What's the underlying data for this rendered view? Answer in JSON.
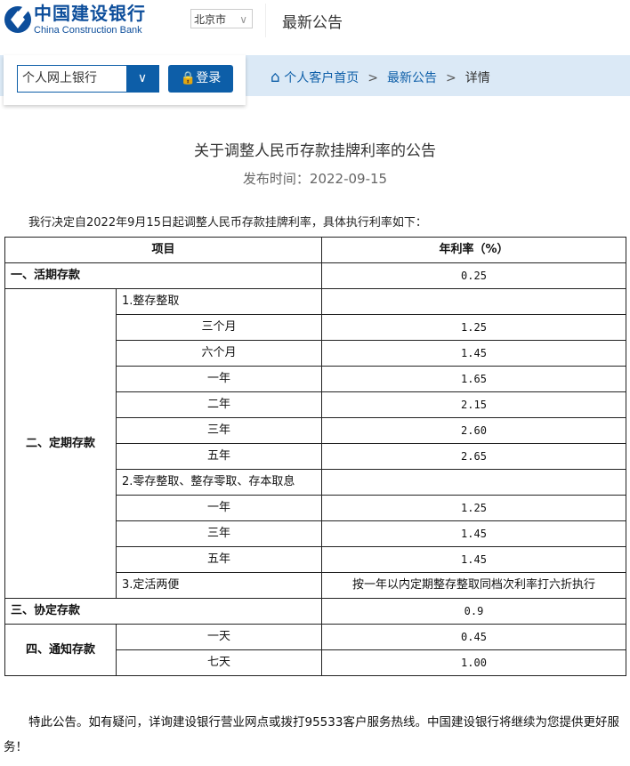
{
  "header": {
    "logo_cn": "中国建设银行",
    "logo_en": "China Construction Bank",
    "city": "北京市",
    "page_title": "最新公告"
  },
  "login_panel": {
    "select_value": "个人网上银行",
    "login_label": "登录"
  },
  "breadcrumb": {
    "home": "个人客户首页",
    "sep": ">",
    "news": "最新公告",
    "current": "详情"
  },
  "article": {
    "title": "关于调整人民币存款挂牌利率的公告",
    "date": "发布时间：2022-09-15",
    "intro": "我行决定自2022年9月15日起调整人民币存款挂牌利率，具体执行利率如下：",
    "footer": "特此公告。如有疑问，详询建设银行营业网点或拨打95533客户服务热线。中国建设银行将继续为您提供更好服务！"
  },
  "table": {
    "headers": [
      "项目",
      "年利率（%）"
    ],
    "demand": {
      "label": "一、活期存款",
      "rate": "0.25"
    },
    "time": {
      "label": "二、定期存款",
      "groups": [
        {
          "label": "1.整存整取",
          "rows": [
            [
              "三个月",
              "1.25"
            ],
            [
              "六个月",
              "1.45"
            ],
            [
              "一年",
              "1.65"
            ],
            [
              "二年",
              "2.15"
            ],
            [
              "三年",
              "2.60"
            ],
            [
              "五年",
              "2.65"
            ]
          ]
        },
        {
          "label": "2.零存整取、整存零取、存本取息",
          "rows": [
            [
              "一年",
              "1.25"
            ],
            [
              "三年",
              "1.45"
            ],
            [
              "五年",
              "1.45"
            ]
          ]
        }
      ],
      "flex": {
        "label": "3.定活两便",
        "rate": "按一年以内定期整存整取同档次利率打六折执行"
      }
    },
    "agreement": {
      "label": "三、协定存款",
      "rate": "0.9"
    },
    "notice": {
      "label": "四、通知存款",
      "rows": [
        [
          "一天",
          "0.45"
        ],
        [
          "七天",
          "1.00"
        ]
      ]
    }
  }
}
